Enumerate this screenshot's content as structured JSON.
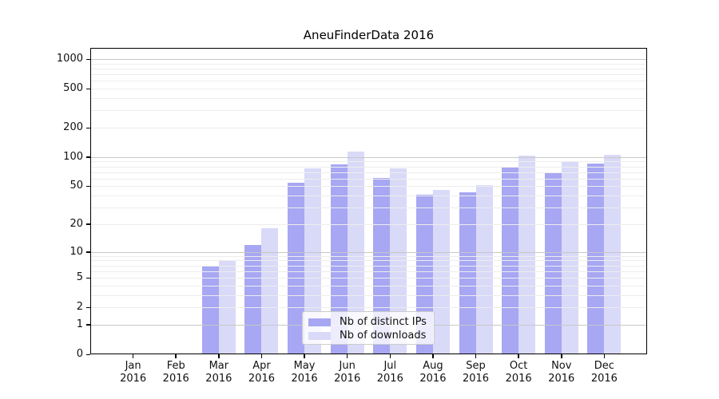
{
  "figure": {
    "title": "AneuFinderData 2016",
    "background": "#ffffff"
  },
  "chart_data": {
    "type": "bar",
    "title": "AneuFinderData 2016",
    "categories": [
      "Jan 2016",
      "Feb 2016",
      "Mar 2016",
      "Apr 2016",
      "May 2016",
      "Jun 2016",
      "Jul 2016",
      "Aug 2016",
      "Sep 2016",
      "Oct 2016",
      "Nov 2016",
      "Dec 2016"
    ],
    "series": [
      {
        "name": "Nb of distinct IPs",
        "color": "#a7a7f3",
        "values": [
          0,
          0,
          7,
          12,
          54,
          84,
          61,
          41,
          43,
          78,
          70,
          86
        ]
      },
      {
        "name": "Nb of downloads",
        "color": "#d9d9f8",
        "values": [
          0,
          0,
          8,
          18,
          77,
          114,
          77,
          46,
          51,
          103,
          89,
          105
        ]
      }
    ],
    "xlabel": "",
    "ylabel": "",
    "yscale": "log1p",
    "ylim": [
      0,
      1300
    ],
    "y_ticks": [
      0,
      1,
      2,
      5,
      10,
      20,
      50,
      100,
      200,
      500,
      1000
    ],
    "y_major_gridlines": [
      1,
      10,
      100,
      1000
    ],
    "y_minor_gridlines": [
      2,
      3,
      4,
      5,
      6,
      7,
      8,
      9,
      20,
      30,
      40,
      50,
      60,
      70,
      80,
      90,
      200,
      300,
      400,
      500,
      600,
      700,
      800,
      900
    ],
    "grid": true,
    "legend_position": "lower center",
    "colors": {
      "axis": "#000000",
      "major_grid": "#c8c8c8",
      "minor_grid": "#ededed",
      "text": "#111111",
      "legend_border": "#cccccc"
    }
  }
}
